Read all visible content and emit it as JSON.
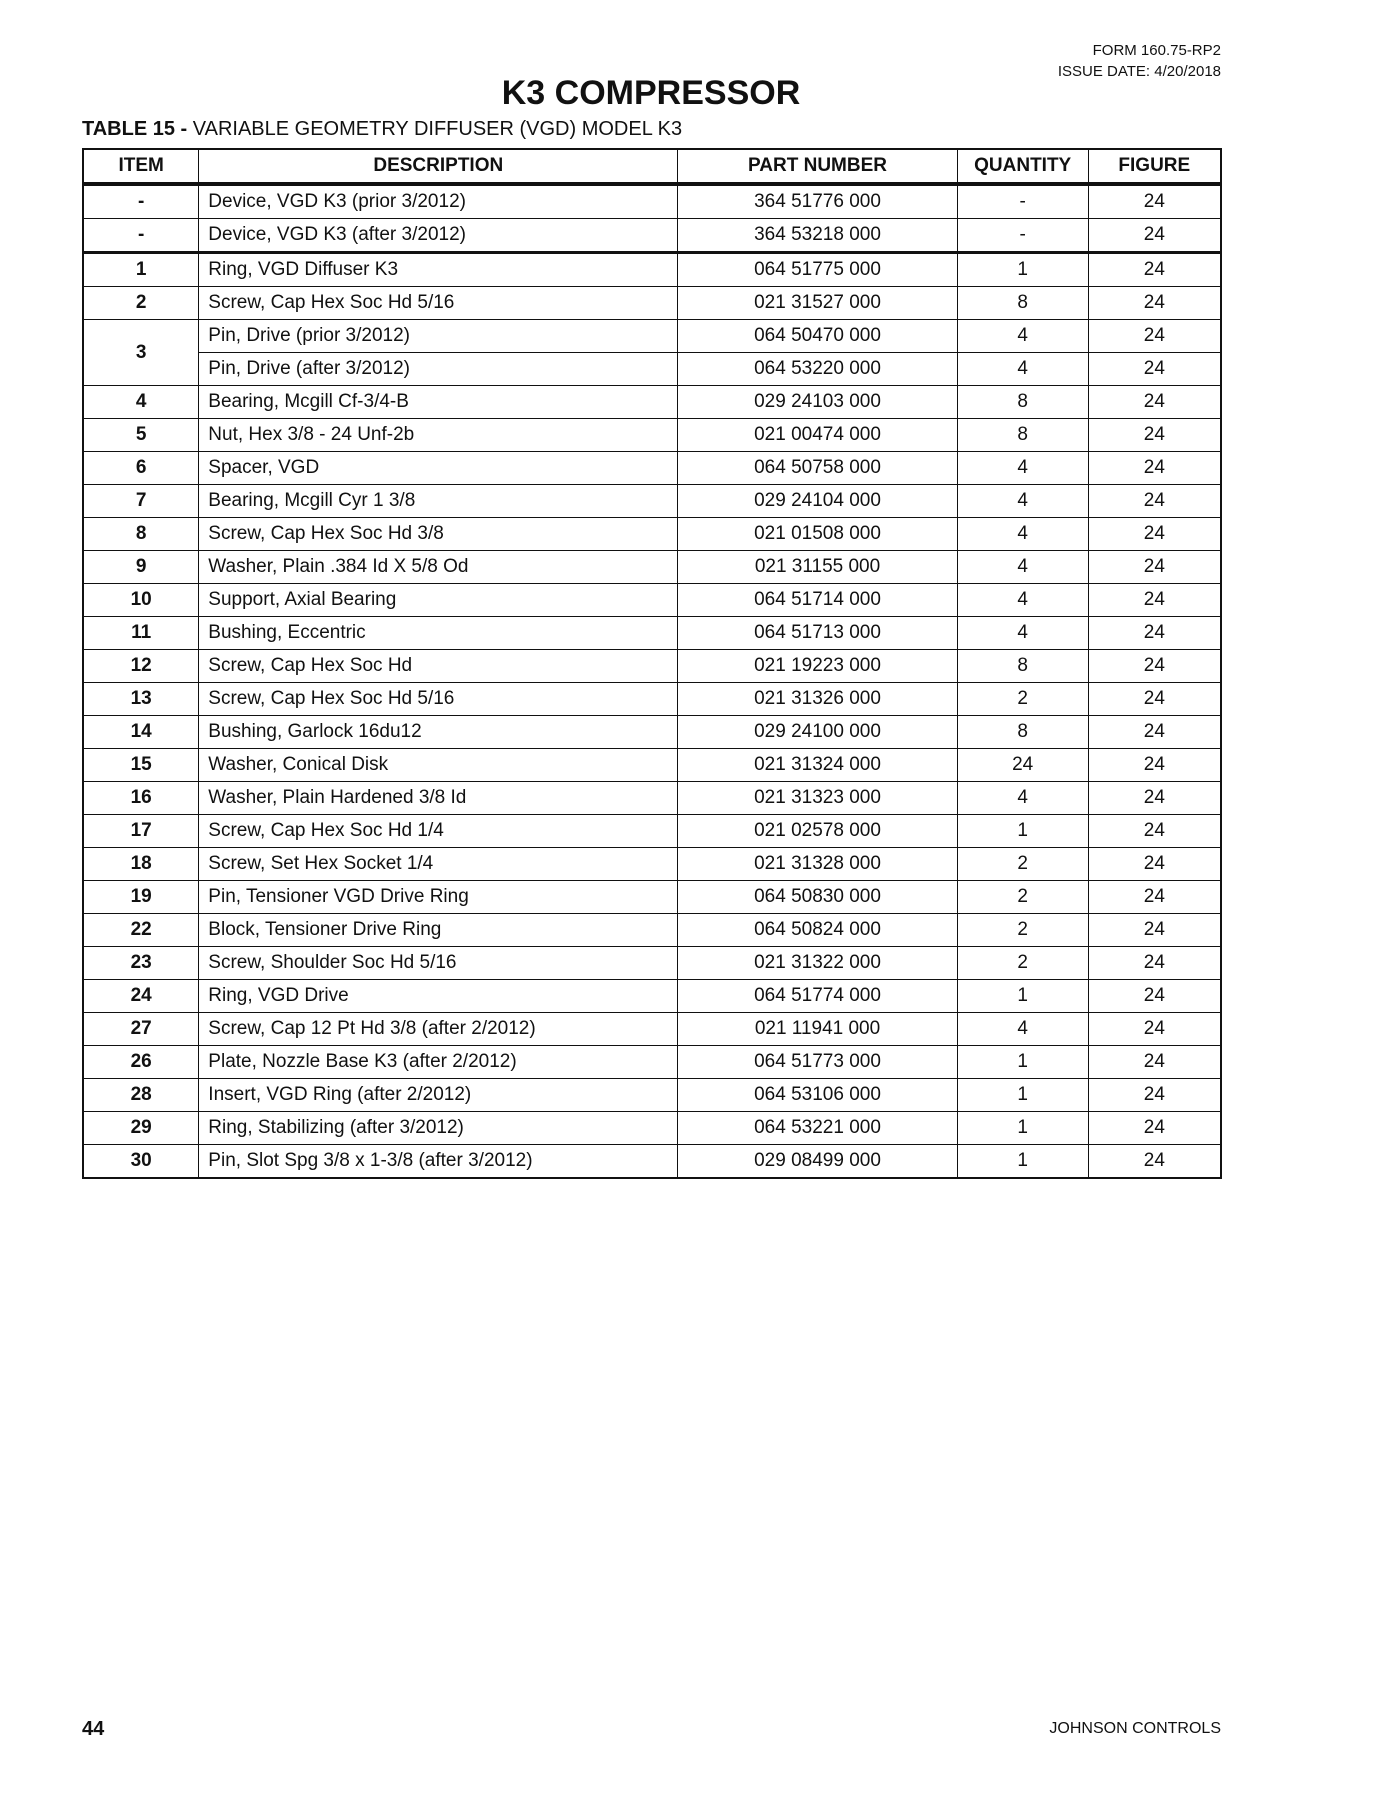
{
  "header": {
    "form": "FORM 160.75-RP2",
    "issue_date": "ISSUE DATE: 4/20/2018"
  },
  "title": "K3 COMPRESSOR",
  "caption": {
    "label": "TABLE 15 -",
    "text": " VARIABLE GEOMETRY DIFFUSER (VGD) MODEL K3"
  },
  "columns": [
    "ITEM",
    "DESCRIPTION",
    "PART NUMBER",
    "QUANTITY",
    "FIGURE"
  ],
  "rows": [
    {
      "item": "-",
      "description": "Device, VGD K3 (prior 3/2012)",
      "part": "364 51776 000",
      "qty": "-",
      "fig": "24"
    },
    {
      "item": "-",
      "description": "Device, VGD K3 (after 3/2012)",
      "part": "364 53218 000",
      "qty": "-",
      "fig": "24"
    },
    {
      "item": "1",
      "description": "Ring, VGD Diffuser K3",
      "part": "064 51775 000",
      "qty": "1",
      "fig": "24"
    },
    {
      "item": "2",
      "description": "Screw, Cap Hex Soc Hd 5/16",
      "part": "021 31527 000",
      "qty": "8",
      "fig": "24"
    },
    {
      "item": "3",
      "description": "Pin, Drive (prior 3/2012)",
      "part": "064 50470 000",
      "qty": "4",
      "fig": "24"
    },
    {
      "item": "",
      "description": "Pin, Drive (after 3/2012)",
      "part": "064 53220 000",
      "qty": "4",
      "fig": "24"
    },
    {
      "item": "4",
      "description": "Bearing, Mcgill Cf-3/4-B",
      "part": "029 24103 000",
      "qty": "8",
      "fig": "24"
    },
    {
      "item": "5",
      "description": "Nut, Hex 3/8 - 24 Unf-2b",
      "part": "021 00474 000",
      "qty": "8",
      "fig": "24"
    },
    {
      "item": "6",
      "description": "Spacer, VGD",
      "part": "064 50758 000",
      "qty": "4",
      "fig": "24"
    },
    {
      "item": "7",
      "description": "Bearing, Mcgill Cyr 1 3/8",
      "part": "029 24104 000",
      "qty": "4",
      "fig": "24"
    },
    {
      "item": "8",
      "description": "Screw, Cap Hex Soc Hd 3/8",
      "part": "021 01508 000",
      "qty": "4",
      "fig": "24"
    },
    {
      "item": "9",
      "description": "Washer, Plain .384 Id X 5/8 Od",
      "part": "021 31155 000",
      "qty": "4",
      "fig": "24"
    },
    {
      "item": "10",
      "description": "Support, Axial Bearing",
      "part": "064 51714 000",
      "qty": "4",
      "fig": "24"
    },
    {
      "item": "11",
      "description": "Bushing, Eccentric",
      "part": "064 51713 000",
      "qty": "4",
      "fig": "24"
    },
    {
      "item": "12",
      "description": "Screw, Cap Hex Soc Hd",
      "part": "021 19223 000",
      "qty": "8",
      "fig": "24"
    },
    {
      "item": "13",
      "description": "Screw, Cap Hex Soc Hd 5/16",
      "part": "021 31326 000",
      "qty": "2",
      "fig": "24"
    },
    {
      "item": "14",
      "description": "Bushing, Garlock 16du12",
      "part": "029 24100 000",
      "qty": "8",
      "fig": "24"
    },
    {
      "item": "15",
      "description": "Washer, Conical Disk",
      "part": "021 31324 000",
      "qty": "24",
      "fig": "24"
    },
    {
      "item": "16",
      "description": "Washer, Plain Hardened 3/8 Id",
      "part": "021 31323 000",
      "qty": "4",
      "fig": "24"
    },
    {
      "item": "17",
      "description": "Screw, Cap Hex Soc Hd 1/4",
      "part": "021 02578 000",
      "qty": "1",
      "fig": "24"
    },
    {
      "item": "18",
      "description": "Screw, Set Hex Socket 1/4",
      "part": "021 31328 000",
      "qty": "2",
      "fig": "24"
    },
    {
      "item": "19",
      "description": "Pin, Tensioner VGD Drive Ring",
      "part": "064 50830 000",
      "qty": "2",
      "fig": "24"
    },
    {
      "item": "22",
      "description": "Block, Tensioner Drive Ring",
      "part": "064 50824 000",
      "qty": "2",
      "fig": "24"
    },
    {
      "item": "23",
      "description": "Screw, Shoulder Soc Hd 5/16",
      "part": "021 31322 000",
      "qty": "2",
      "fig": "24"
    },
    {
      "item": "24",
      "description": "Ring, VGD Drive",
      "part": "064 51774 000",
      "qty": "1",
      "fig": "24"
    },
    {
      "item": "27",
      "description": "Screw, Cap 12 Pt Hd 3/8 (after 2/2012)",
      "part": "021 11941 000",
      "qty": "4",
      "fig": "24"
    },
    {
      "item": "26",
      "description": "Plate, Nozzle Base K3 (after 2/2012)",
      "part": "064 51773 000",
      "qty": "1",
      "fig": "24"
    },
    {
      "item": "28",
      "description": "Insert, VGD Ring (after 2/2012)",
      "part": "064 53106 000",
      "qty": "1",
      "fig": "24"
    },
    {
      "item": "29",
      "description": "Ring, Stabilizing (after 3/2012)",
      "part": "064 53221 000",
      "qty": "1",
      "fig": "24"
    },
    {
      "item": "30",
      "description": "Pin, Slot Spg 3/8 x 1-3/8 (after 3/2012)",
      "part": "029 08499 000",
      "qty": "1",
      "fig": "24"
    }
  ],
  "footer": {
    "page": "44",
    "company": "JOHNSON CONTROLS"
  }
}
